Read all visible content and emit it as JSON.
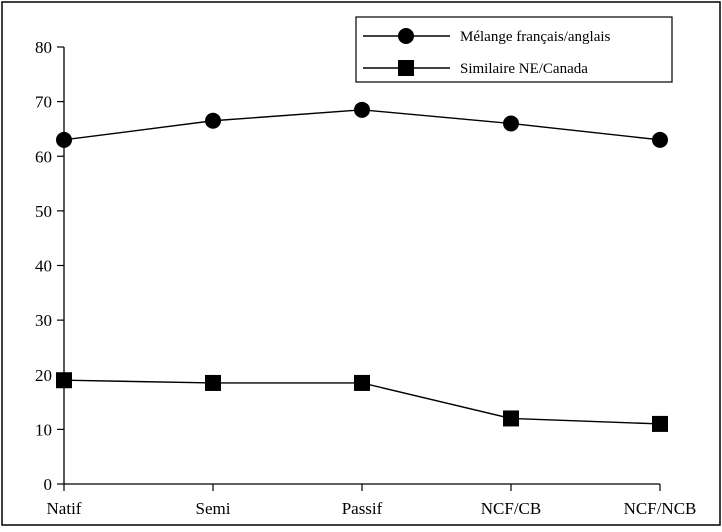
{
  "chart_data": {
    "type": "line",
    "title": "",
    "xlabel": "",
    "ylabel": "",
    "categories": [
      "Natif",
      "Semi",
      "Passif",
      "NCF/CB",
      "NCF/NCB"
    ],
    "ylim": [
      0,
      80
    ],
    "yticks": [
      0,
      10,
      20,
      30,
      40,
      50,
      60,
      70,
      80
    ],
    "grid": false,
    "legend_position": "top-right",
    "series": [
      {
        "name": "Mélange français/anglais",
        "marker": "circle",
        "color": "#000000",
        "values": [
          63,
          66.5,
          68.5,
          66,
          63
        ]
      },
      {
        "name": "Similaire NE/Canada",
        "marker": "square",
        "color": "#000000",
        "values": [
          19,
          18.5,
          18.5,
          12,
          11
        ]
      }
    ]
  }
}
